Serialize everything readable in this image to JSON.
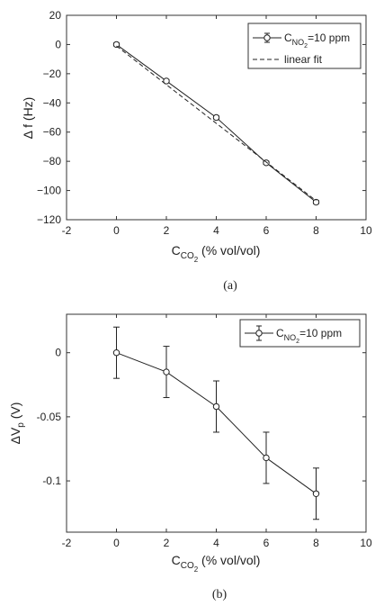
{
  "chart_data": [
    {
      "type": "line",
      "panel_label": "(a)",
      "xlabel": {
        "main": "C",
        "sub": "CO",
        "sub2": "2",
        "suffix": " (% vol/vol)"
      },
      "ylabel": "Δ f  (Hz)",
      "xlim": [
        -2,
        10
      ],
      "ylim": [
        -120,
        20
      ],
      "xticks": [
        -2,
        0,
        2,
        4,
        6,
        8,
        10
      ],
      "xtick_labels": [
        "-2",
        "0",
        "2",
        "4",
        "6",
        "8",
        "10"
      ],
      "yticks": [
        20,
        0,
        -20,
        -40,
        -60,
        -80,
        -100,
        -120
      ],
      "ytick_labels": [
        "20",
        "0",
        "−20",
        "−40",
        "−60",
        "−80",
        "−100",
        "−120"
      ],
      "grid": false,
      "legend_position": "top-right",
      "series": [
        {
          "name": {
            "main": "C",
            "sub": "NO",
            "sub2": "2",
            "suffix": "=10 ppm"
          },
          "style": "solid-circle-errorbar",
          "x": [
            0,
            2,
            4,
            6,
            8
          ],
          "y": [
            0,
            -25,
            -50,
            -81,
            -108
          ],
          "error": [
            1,
            1,
            1,
            1,
            1
          ]
        },
        {
          "name": {
            "main": "linear fit",
            "sub": "",
            "sub2": "",
            "suffix": ""
          },
          "style": "dashed",
          "x": [
            0,
            8
          ],
          "y": [
            -1,
            -107
          ]
        }
      ]
    },
    {
      "type": "line",
      "panel_label": "(b)",
      "xlabel": {
        "main": "C",
        "sub": "CO",
        "sub2": "2",
        "suffix": " (% vol/vol)"
      },
      "ylabel": {
        "main": "ΔV",
        "sub": "p",
        "suffix": " (V)"
      },
      "xlim": [
        -2,
        10
      ],
      "ylim": [
        -0.14,
        0.03
      ],
      "xticks": [
        -2,
        0,
        2,
        4,
        6,
        8,
        10
      ],
      "xtick_labels": [
        "-2",
        "0",
        "2",
        "4",
        "6",
        "8",
        "10"
      ],
      "yticks": [
        0,
        -0.05,
        -0.1
      ],
      "ytick_labels": [
        "0",
        "-0.05",
        "-0.1"
      ],
      "grid": false,
      "legend_position": "top-right",
      "series": [
        {
          "name": {
            "main": "C",
            "sub": "NO",
            "sub2": "2",
            "suffix": "=10 ppm"
          },
          "style": "solid-circle-errorbar",
          "x": [
            0,
            2,
            4,
            6,
            8
          ],
          "y": [
            0,
            -0.015,
            -0.042,
            -0.082,
            -0.11
          ],
          "error": [
            0.02,
            0.02,
            0.02,
            0.02,
            0.02
          ]
        }
      ]
    }
  ],
  "colors": {
    "line": "#222222",
    "axis": "#333333",
    "background": "#ffffff"
  }
}
